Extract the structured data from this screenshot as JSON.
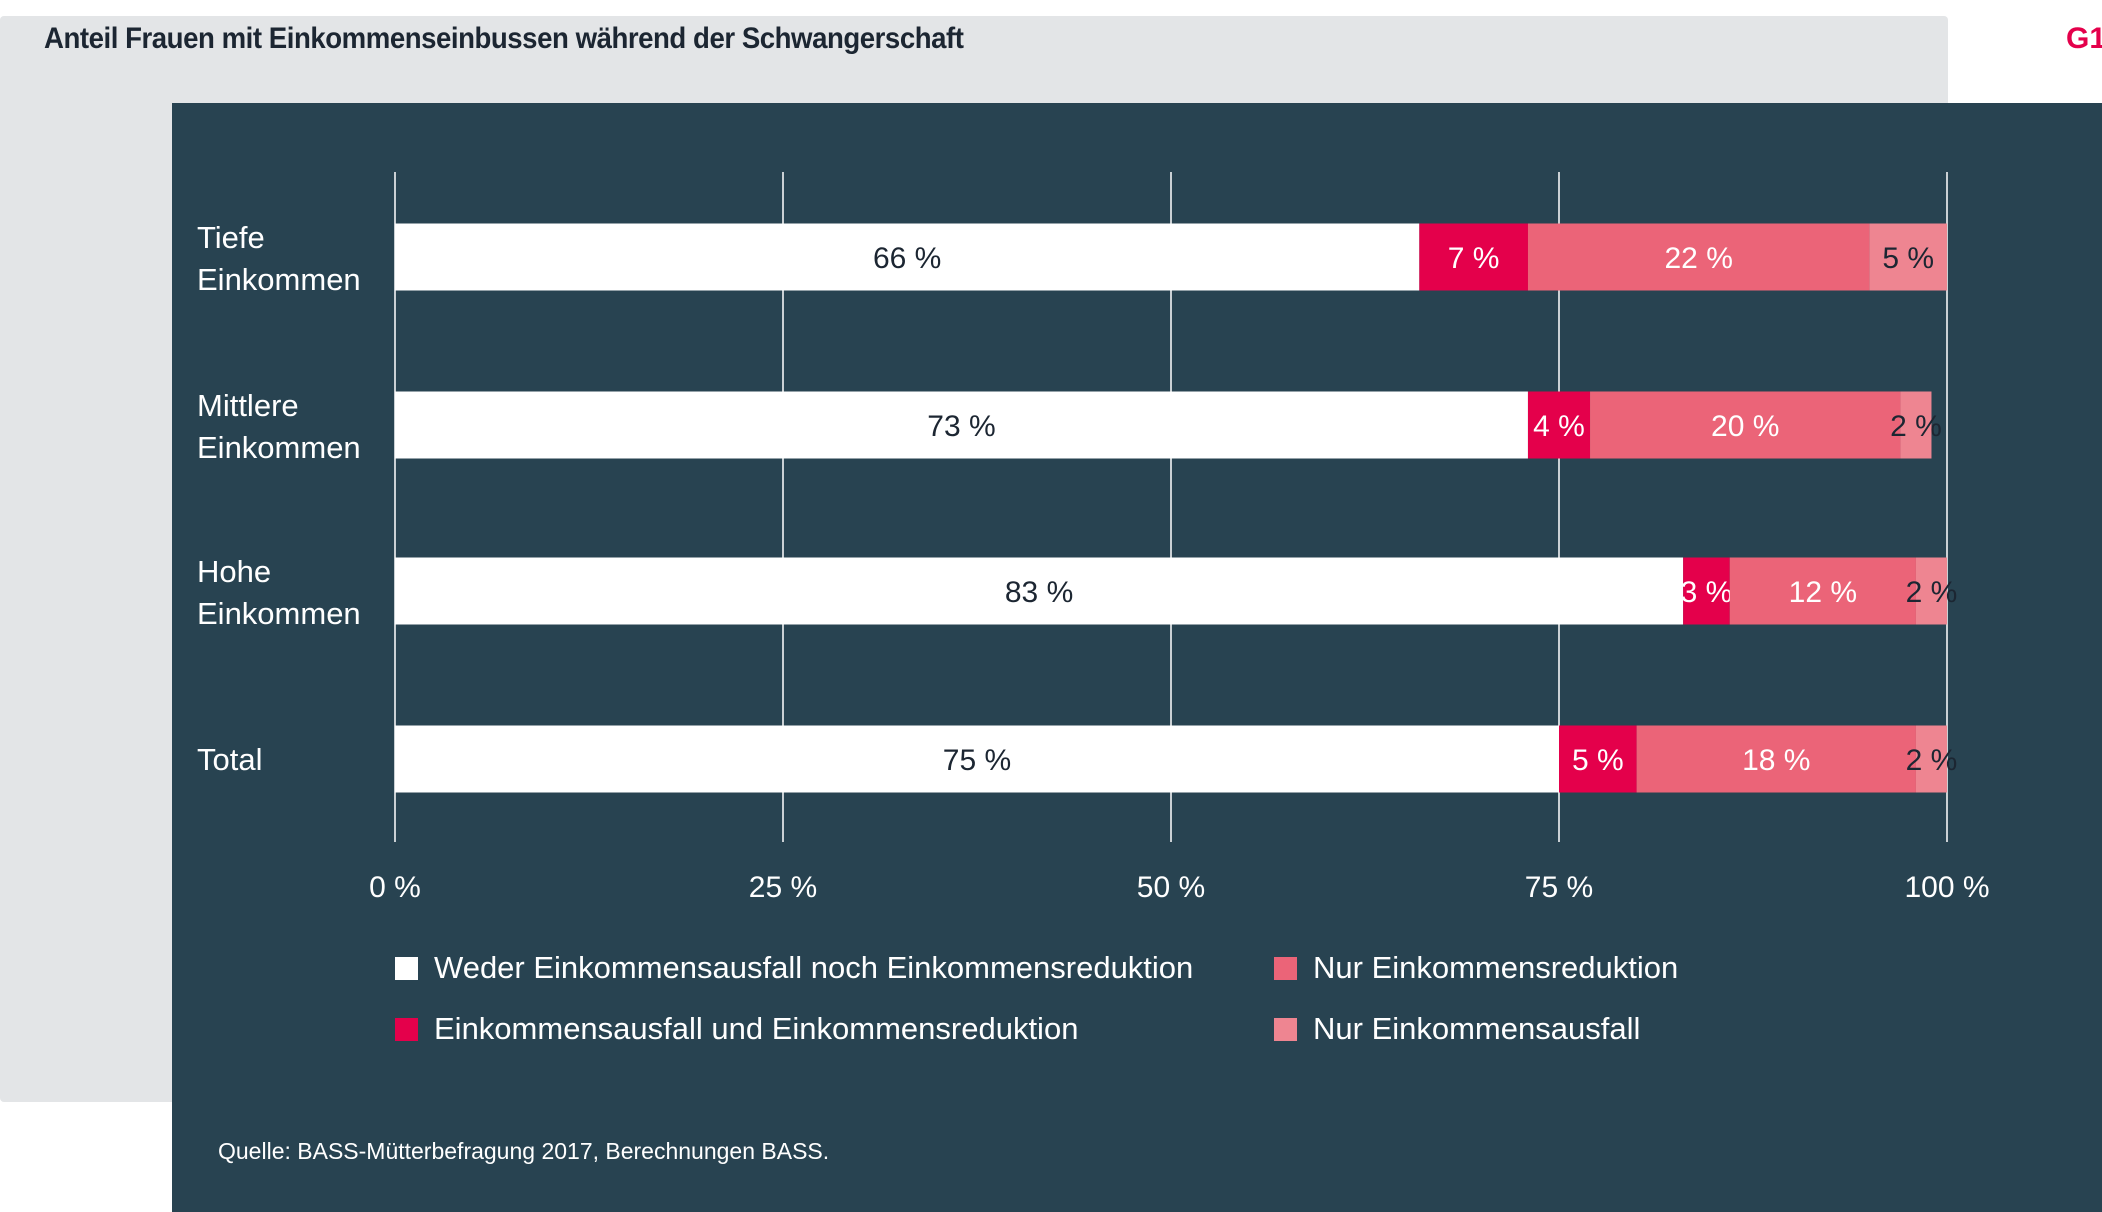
{
  "title": "Anteil Frauen mit Einkommenseinbussen während der Schwangerschaft",
  "figure_id": "G1",
  "source": "Quelle: BASS-Mütterbefragung 2017, Berechnungen BASS.",
  "colors": {
    "background_panel": "#284351",
    "outer_panel": "#e3e5e7",
    "accent": "#e4004b"
  },
  "chart_data": {
    "type": "bar",
    "orientation": "horizontal",
    "stacked": true,
    "categories": [
      [
        "Tiefe",
        "Einkommen"
      ],
      [
        "Mittlere",
        "Einkommen"
      ],
      [
        "Hohe",
        "Einkommen"
      ],
      [
        "Total"
      ]
    ],
    "series": [
      {
        "name": "Weder Einkommensausfall noch Einkommensreduktion",
        "color": "#ffffff",
        "label_color": "#1c2632",
        "values": [
          66,
          73,
          83,
          75
        ],
        "labels": [
          "66 %",
          "73 %",
          "83 %",
          "75 %"
        ]
      },
      {
        "name": "Einkommensausfall und Einkommensreduktion",
        "color": "#e4004b",
        "label_color": "#ffffff",
        "values": [
          7,
          4,
          3,
          5
        ],
        "labels": [
          "7 %",
          "4 %",
          "3 %",
          "5 %"
        ]
      },
      {
        "name": "Nur Einkommensreduktion",
        "color": "#eb6478",
        "label_color": "#ffffff",
        "values": [
          22,
          20,
          12,
          18
        ],
        "labels": [
          "22 %",
          "20 %",
          "12 %",
          "18 %"
        ]
      },
      {
        "name": "Nur Einkommensausfall",
        "color": "#ee8591",
        "label_color": "#1c2632",
        "values": [
          5,
          2,
          2,
          2
        ],
        "labels": [
          "5 %",
          "2 %",
          "2 %",
          "2 %"
        ]
      }
    ],
    "xlim": [
      0,
      100
    ],
    "xticks": [
      0,
      25,
      50,
      75,
      100
    ],
    "xtick_labels": [
      "0 %",
      "25 %",
      "50 %",
      "75 %",
      "100 %"
    ],
    "grid": true,
    "legend_placement": "bottom"
  }
}
